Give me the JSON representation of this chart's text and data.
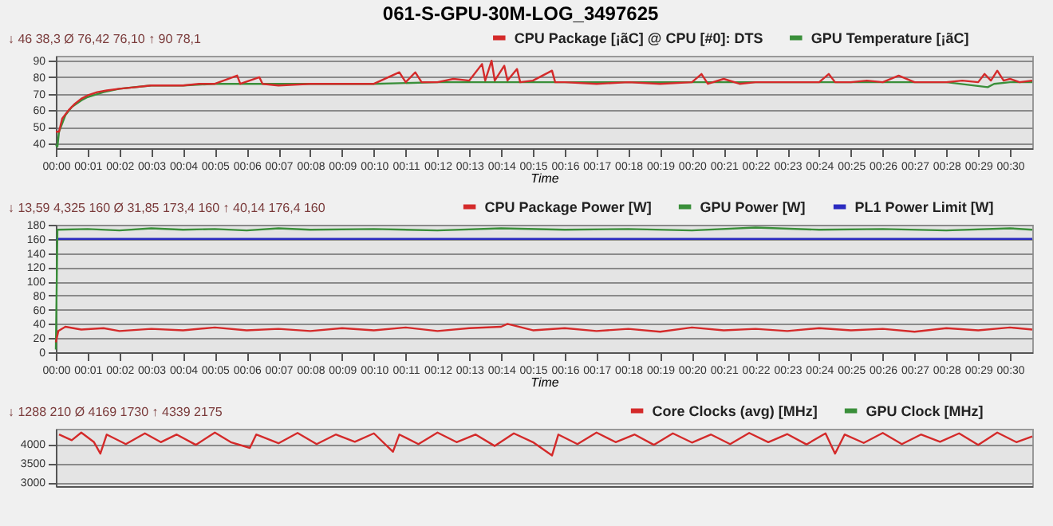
{
  "chart_data": [
    {
      "type": "line",
      "title": "061-S-GPU-30M-LOG_3497625",
      "xlabel": "Time",
      "annotations": [
        "↓ 46 38,3",
        "Ø 76,42 76,10",
        "↑ 90 78,1"
      ],
      "series": [
        {
          "name": "CPU Package [¡ãC] @ CPU [#0]: DTS",
          "color": "#d42a2a",
          "x": [
            0,
            0.1,
            0.2,
            0.4,
            0.6,
            0.8,
            1,
            1.3,
            1.6,
            2,
            2.5,
            3,
            3.5,
            4,
            4.5,
            5,
            5.7,
            5.8,
            6.4,
            6.5,
            7,
            8,
            9,
            10,
            10.8,
            11,
            11.3,
            11.5,
            12,
            12.5,
            13,
            13.4,
            13.5,
            13.7,
            13.8,
            14.1,
            14.2,
            14.5,
            14.6,
            15,
            15.6,
            15.7,
            16,
            17,
            18,
            19,
            20,
            20.3,
            20.5,
            21,
            21.5,
            22,
            23,
            24,
            24.3,
            24.5,
            25,
            25.5,
            26,
            26.5,
            27,
            28,
            28.5,
            29,
            29.2,
            29.4,
            29.6,
            29.8,
            30,
            30.3,
            30.7
          ],
          "values": [
            47,
            47,
            55,
            60,
            64,
            67,
            69,
            71,
            72,
            73,
            74,
            75,
            75,
            75,
            76,
            76,
            81,
            76,
            80,
            76,
            75,
            76,
            76,
            76,
            83,
            77,
            83,
            77,
            77,
            79,
            78,
            88,
            78,
            90,
            78,
            87,
            78,
            85,
            77,
            78,
            84,
            77,
            77,
            76,
            77,
            76,
            77,
            82,
            76,
            79,
            76,
            77,
            77,
            77,
            82,
            77,
            77,
            78,
            77,
            81,
            77,
            77,
            78,
            77,
            82,
            78,
            84,
            78,
            79,
            77,
            78
          ]
        },
        {
          "name": "GPU Temperature [¡ãC]",
          "color": "#3a8f3a",
          "x": [
            0,
            0.05,
            0.1,
            0.3,
            0.5,
            0.8,
            1,
            1.5,
            2,
            3,
            4,
            5,
            6,
            8,
            10,
            12,
            14,
            16,
            18,
            20,
            22,
            24,
            26,
            28,
            29.3,
            29.5,
            30,
            30.7
          ],
          "values": [
            39,
            38,
            47,
            57,
            62,
            66,
            68,
            71,
            73,
            75,
            75,
            76,
            76,
            76,
            76,
            77,
            77,
            77,
            77,
            77,
            77,
            77,
            77,
            77,
            74,
            76,
            77,
            77
          ]
        }
      ],
      "xlim": [
        0,
        30.7
      ],
      "ylim": [
        37,
        93
      ],
      "yticks": [
        40,
        50,
        60,
        70,
        80,
        90
      ],
      "xticks": [
        {
          "value": 0,
          "label": "00:00"
        },
        {
          "value": 1,
          "label": "00:01"
        },
        {
          "value": 2,
          "label": "00:02"
        },
        {
          "value": 3,
          "label": "00:03"
        },
        {
          "value": 4,
          "label": "00:04"
        },
        {
          "value": 5,
          "label": "00:05"
        },
        {
          "value": 6,
          "label": "00:06"
        },
        {
          "value": 7,
          "label": "00:07"
        },
        {
          "value": 8,
          "label": "00:08"
        },
        {
          "value": 9,
          "label": "00:09"
        },
        {
          "value": 10,
          "label": "00:10"
        },
        {
          "value": 11,
          "label": "00:11"
        },
        {
          "value": 12,
          "label": "00:12"
        },
        {
          "value": 13,
          "label": "00:13"
        },
        {
          "value": 14,
          "label": "00:14"
        },
        {
          "value": 15,
          "label": "00:15"
        },
        {
          "value": 16,
          "label": "00:16"
        },
        {
          "value": 17,
          "label": "00:17"
        },
        {
          "value": 18,
          "label": "00:18"
        },
        {
          "value": 19,
          "label": "00:19"
        },
        {
          "value": 20,
          "label": "00:20"
        },
        {
          "value": 21,
          "label": "00:21"
        },
        {
          "value": 22,
          "label": "00:22"
        },
        {
          "value": 23,
          "label": "00:23"
        },
        {
          "value": 24,
          "label": "00:24"
        },
        {
          "value": 25,
          "label": "00:25"
        },
        {
          "value": 26,
          "label": "00:26"
        },
        {
          "value": 27,
          "label": "00:27"
        },
        {
          "value": 28,
          "label": "00:28"
        },
        {
          "value": 29,
          "label": "00:29"
        },
        {
          "value": 30,
          "label": "00:30"
        }
      ],
      "grid": "y",
      "legend": "top right"
    },
    {
      "type": "line",
      "xlabel": "Time",
      "annotations": [
        "↓ 13,59 4,325 160",
        "Ø 31,85 173,4 160",
        "↑ 40,14 176,4 160"
      ],
      "series": [
        {
          "name": "CPU Package Power [W]",
          "color": "#d42a2a",
          "x": [
            0,
            0.08,
            0.3,
            0.8,
            1.5,
            2,
            3,
            4,
            5,
            6,
            7,
            8,
            9,
            10,
            11,
            12,
            13,
            14,
            14.2,
            15,
            16,
            17,
            18,
            19,
            20,
            21,
            22,
            23,
            24,
            25,
            26,
            27,
            28,
            29,
            30,
            30.7
          ],
          "values": [
            14,
            30,
            36,
            32,
            34,
            30,
            33,
            31,
            35,
            31,
            33,
            30,
            34,
            31,
            35,
            30,
            34,
            36,
            40,
            31,
            34,
            30,
            33,
            29,
            35,
            31,
            33,
            30,
            34,
            31,
            33,
            29,
            34,
            31,
            35,
            32
          ]
        },
        {
          "name": "GPU Power [W]",
          "color": "#3a8f3a",
          "x": [
            0,
            0.05,
            1,
            2,
            3,
            4,
            5,
            6,
            7,
            8,
            10,
            12,
            14,
            16,
            18,
            20,
            22,
            24,
            26,
            28,
            30,
            30.7
          ],
          "values": [
            4,
            173,
            174,
            172,
            175,
            173,
            174,
            172,
            175,
            173,
            174,
            172,
            175,
            173,
            174,
            172,
            176,
            173,
            174,
            172,
            175,
            173
          ]
        },
        {
          "name": "PL1 Power Limit [W]",
          "color": "#2a2ac0",
          "x": [
            0,
            30.7
          ],
          "values": [
            160,
            160
          ]
        }
      ],
      "xlim": [
        0,
        30.7
      ],
      "ylim": [
        0,
        180
      ],
      "yticks": [
        0,
        20,
        40,
        60,
        80,
        100,
        120,
        140,
        160,
        180
      ],
      "xticks": [
        {
          "value": 0,
          "label": "00:00"
        },
        {
          "value": 1,
          "label": "00:01"
        },
        {
          "value": 2,
          "label": "00:02"
        },
        {
          "value": 3,
          "label": "00:03"
        },
        {
          "value": 4,
          "label": "00:04"
        },
        {
          "value": 5,
          "label": "00:05"
        },
        {
          "value": 6,
          "label": "00:06"
        },
        {
          "value": 7,
          "label": "00:07"
        },
        {
          "value": 8,
          "label": "00:08"
        },
        {
          "value": 9,
          "label": "00:09"
        },
        {
          "value": 10,
          "label": "00:10"
        },
        {
          "value": 11,
          "label": "00:11"
        },
        {
          "value": 12,
          "label": "00:12"
        },
        {
          "value": 13,
          "label": "00:13"
        },
        {
          "value": 14,
          "label": "00:14"
        },
        {
          "value": 15,
          "label": "00:15"
        },
        {
          "value": 16,
          "label": "00:16"
        },
        {
          "value": 17,
          "label": "00:17"
        },
        {
          "value": 18,
          "label": "00:18"
        },
        {
          "value": 19,
          "label": "00:19"
        },
        {
          "value": 20,
          "label": "00:20"
        },
        {
          "value": 21,
          "label": "00:21"
        },
        {
          "value": 22,
          "label": "00:22"
        },
        {
          "value": 23,
          "label": "00:23"
        },
        {
          "value": 24,
          "label": "00:24"
        },
        {
          "value": 25,
          "label": "00:25"
        },
        {
          "value": 26,
          "label": "00:26"
        },
        {
          "value": 27,
          "label": "00:27"
        },
        {
          "value": 28,
          "label": "00:28"
        },
        {
          "value": 29,
          "label": "00:29"
        },
        {
          "value": 30,
          "label": "00:30"
        }
      ],
      "grid": "y",
      "legend": "top right"
    },
    {
      "type": "line",
      "annotations": [
        "↓ 1288 210",
        "Ø 4169 1730",
        "↑ 4339 2175"
      ],
      "series": [
        {
          "name": "Core Clocks (avg) [MHz]",
          "color": "#d42a2a",
          "x": [
            0.1,
            0.5,
            0.8,
            1.2,
            1.4,
            1.6,
            2.2,
            2.8,
            3.3,
            3.8,
            4.4,
            5,
            5.5,
            6.1,
            6.3,
            7,
            7.6,
            8.2,
            8.8,
            9.4,
            10,
            10.6,
            10.8,
            11.4,
            12,
            12.6,
            13.2,
            13.8,
            14.4,
            15,
            15.6,
            15.8,
            16.4,
            17,
            17.6,
            18.2,
            18.8,
            19.4,
            20,
            20.6,
            21.2,
            21.8,
            22.4,
            23,
            23.6,
            24.2,
            24.5,
            24.8,
            25.4,
            26,
            26.6,
            27.2,
            27.8,
            28.4,
            29,
            29.6,
            30.2,
            30.7
          ],
          "values": [
            4250,
            4100,
            4300,
            4050,
            3750,
            4250,
            4000,
            4280,
            4050,
            4250,
            3980,
            4300,
            4050,
            3900,
            4250,
            4020,
            4290,
            4000,
            4250,
            4060,
            4280,
            3800,
            4250,
            4000,
            4300,
            4050,
            4250,
            3950,
            4280,
            4050,
            3700,
            4250,
            4000,
            4300,
            4050,
            4250,
            3980,
            4280,
            4040,
            4250,
            4000,
            4290,
            4050,
            4260,
            3990,
            4280,
            3750,
            4250,
            4030,
            4290,
            4000,
            4250,
            4060,
            4280,
            3980,
            4300,
            4050,
            4200
          ]
        },
        {
          "name": "GPU Clock [MHz]",
          "color": "#3a8f3a"
        }
      ],
      "xlim": [
        0,
        30.7
      ],
      "ylim": [
        2900,
        4400
      ],
      "yticks": [
        3000,
        3500,
        4000
      ],
      "tick_labels": "y",
      "grid": "y",
      "legend": "top right"
    }
  ]
}
